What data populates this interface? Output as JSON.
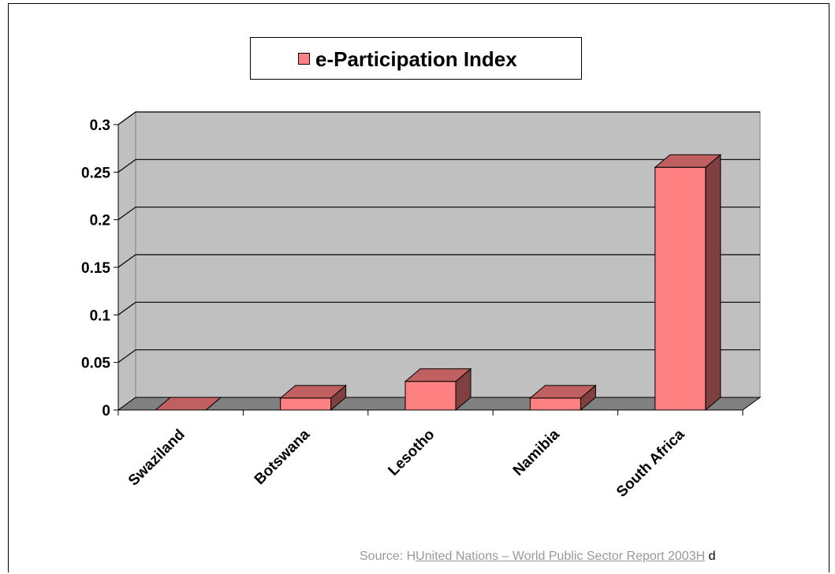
{
  "chart_data": {
    "type": "bar",
    "categories": [
      "Swaziland",
      "Botswana",
      "Lesotho",
      "Namibia",
      "South Africa"
    ],
    "series": [
      {
        "name": "e-Participation Index",
        "values": [
          0,
          0.0125,
          0.03,
          0.0125,
          0.255
        ]
      }
    ],
    "ylim": [
      0,
      0.3
    ],
    "yticks": [
      "0",
      "0.05",
      "0.1",
      "0.15",
      "0.2",
      "0.25",
      "0.3"
    ],
    "grid": true,
    "three_d": true,
    "legend_position": "top",
    "colors": {
      "bar_front": "#ff8080",
      "bar_top": "#c06060",
      "bar_side": "#804040",
      "wall": "#c0c0c0",
      "floor": "#808080"
    }
  },
  "source": {
    "prefix": "Source: H",
    "link_text": "United Nations – World Public Sector Report 2003H",
    "suffix": " d"
  }
}
